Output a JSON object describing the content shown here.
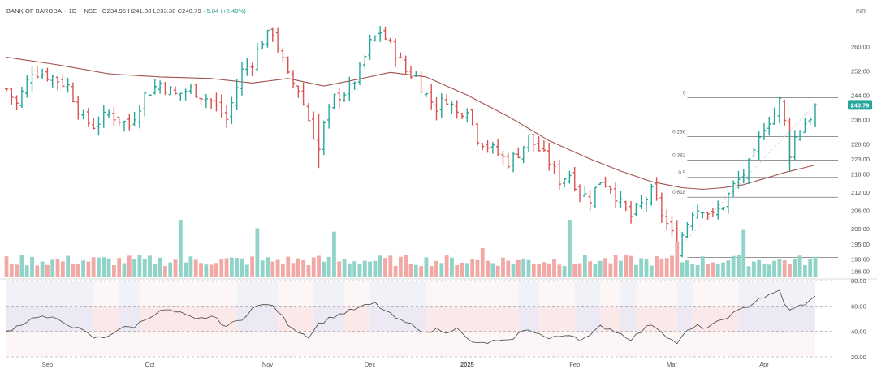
{
  "header": {
    "symbol": "BANK OF BARODA",
    "interval": "1D",
    "exchange": "NSE",
    "open": "O234.95",
    "high": "H241.30",
    "low": "L233.38",
    "close": "C240.79",
    "change": "+5.84 (+2.49%)",
    "currency": "INR"
  },
  "colors": {
    "up": "#26a69a",
    "down": "#d9534f",
    "up_vol": "#8fd3c9",
    "down_vol": "#f2a9a6",
    "ma": "#a0524f",
    "rsi_line": "#444444",
    "rsi_band": "#ece9f4",
    "rsi_pink": "#fbe9e9"
  },
  "chart_data": [
    {
      "type": "ohlc",
      "title": "BANK OF BARODA · 1D · NSE",
      "yticks": [
        260.0,
        252.0,
        244.0,
        236.0,
        228.0,
        223.0,
        218.0,
        212.0,
        206.0,
        200.0,
        195.0,
        190.0,
        186.0
      ],
      "ylim": [
        184,
        270
      ],
      "xticks": [
        {
          "label": "Sep",
          "index": 8
        },
        {
          "label": "Oct",
          "index": 28
        },
        {
          "label": "Nov",
          "index": 51
        },
        {
          "label": "Dec",
          "index": 71
        },
        {
          "label": "2025",
          "index": 90
        },
        {
          "label": "Feb",
          "index": 111
        },
        {
          "label": "Mar",
          "index": 130
        },
        {
          "label": "Apr",
          "index": 148
        }
      ],
      "last_price": "240.79",
      "fibonacci_levels": [
        {
          "label": "0",
          "price": 243.2
        },
        {
          "label": "0.236",
          "price": 230.4
        },
        {
          "label": "0.382",
          "price": 222.6
        },
        {
          "label": "0.5",
          "price": 216.9
        },
        {
          "label": "0.618",
          "price": 210.4
        }
      ],
      "keypoints": [
        [
          0,
          246
        ],
        [
          2,
          241
        ],
        [
          5,
          252
        ],
        [
          9,
          250
        ],
        [
          12,
          247
        ],
        [
          15,
          236
        ],
        [
          17,
          234
        ],
        [
          20,
          238
        ],
        [
          24,
          234
        ],
        [
          27,
          244
        ],
        [
          30,
          248
        ],
        [
          33,
          244
        ],
        [
          36,
          246
        ],
        [
          40,
          242
        ],
        [
          43,
          236
        ],
        [
          46,
          252
        ],
        [
          48,
          255
        ],
        [
          50,
          262
        ],
        [
          52,
          265
        ],
        [
          55,
          250
        ],
        [
          57,
          246
        ],
        [
          59,
          236
        ],
        [
          61,
          226
        ],
        [
          62,
          234
        ],
        [
          64,
          243
        ],
        [
          67,
          246
        ],
        [
          69,
          252
        ],
        [
          71,
          261
        ],
        [
          73,
          265
        ],
        [
          76,
          258
        ],
        [
          78,
          252
        ],
        [
          80,
          250
        ],
        [
          82,
          244
        ],
        [
          84,
          240
        ],
        [
          86,
          243
        ],
        [
          88,
          238
        ],
        [
          90,
          240
        ],
        [
          92,
          230
        ],
        [
          95,
          226
        ],
        [
          98,
          222
        ],
        [
          100,
          225
        ],
        [
          102,
          230
        ],
        [
          104,
          226
        ],
        [
          106,
          222
        ],
        [
          108,
          216
        ],
        [
          110,
          218
        ],
        [
          112,
          212
        ],
        [
          114,
          210
        ],
        [
          116,
          216
        ],
        [
          118,
          214
        ],
        [
          120,
          208
        ],
        [
          122,
          204
        ],
        [
          124,
          208
        ],
        [
          126,
          212
        ],
        [
          128,
          205
        ],
        [
          130,
          198
        ],
        [
          131,
          193
        ],
        [
          132,
          198
        ],
        [
          134,
          206
        ],
        [
          136,
          207
        ],
        [
          138,
          204
        ],
        [
          140,
          208
        ],
        [
          142,
          214
        ],
        [
          144,
          218
        ],
        [
          146,
          224
        ],
        [
          148,
          234
        ],
        [
          150,
          238
        ],
        [
          151,
          242
        ],
        [
          152,
          235
        ],
        [
          153,
          225
        ],
        [
          154,
          230
        ],
        [
          155,
          233
        ],
        [
          157,
          237
        ],
        [
          158,
          240.79
        ]
      ],
      "ma_keypoints": [
        [
          0,
          256.5
        ],
        [
          10,
          254
        ],
        [
          20,
          251
        ],
        [
          30,
          250
        ],
        [
          40,
          249.5
        ],
        [
          48,
          248
        ],
        [
          55,
          249.5
        ],
        [
          62,
          247
        ],
        [
          68,
          249
        ],
        [
          75,
          251.5
        ],
        [
          82,
          250
        ],
        [
          90,
          244
        ],
        [
          98,
          237
        ],
        [
          106,
          229
        ],
        [
          114,
          223
        ],
        [
          120,
          219
        ],
        [
          126,
          215.5
        ],
        [
          132,
          213.5
        ],
        [
          136,
          213
        ],
        [
          140,
          213.5
        ],
        [
          144,
          214.5
        ],
        [
          148,
          216.5
        ],
        [
          152,
          218.5
        ],
        [
          158,
          221
        ]
      ]
    },
    {
      "type": "bar",
      "name": "volume",
      "note": "relative heights 0-1",
      "spikes": [
        {
          "index": 34,
          "value": 1.0
        },
        {
          "index": 49,
          "value": 0.85
        },
        {
          "index": 64,
          "value": 0.79
        },
        {
          "index": 110,
          "value": 1.0
        },
        {
          "index": 93,
          "value": 0.5
        },
        {
          "index": 144,
          "value": 0.82
        },
        {
          "index": 131,
          "value": 0.6
        }
      ]
    },
    {
      "type": "line",
      "name": "rsi",
      "yticks": [
        80.0,
        60.0,
        40.0,
        20.0
      ],
      "ylim": [
        20,
        80
      ],
      "keypoints": [
        [
          0,
          40
        ],
        [
          3,
          46
        ],
        [
          6,
          52
        ],
        [
          9,
          50
        ],
        [
          12,
          46
        ],
        [
          15,
          40
        ],
        [
          17,
          35
        ],
        [
          19,
          35
        ],
        [
          22,
          42
        ],
        [
          25,
          44
        ],
        [
          28,
          52
        ],
        [
          31,
          57
        ],
        [
          34,
          54
        ],
        [
          37,
          49
        ],
        [
          40,
          52
        ],
        [
          43,
          44
        ],
        [
          46,
          50
        ],
        [
          48,
          58
        ],
        [
          51,
          62
        ],
        [
          53,
          56
        ],
        [
          55,
          46
        ],
        [
          57,
          40
        ],
        [
          59,
          36
        ],
        [
          61,
          46
        ],
        [
          64,
          52
        ],
        [
          67,
          56
        ],
        [
          70,
          60
        ],
        [
          72,
          62
        ],
        [
          74,
          56
        ],
        [
          77,
          48
        ],
        [
          80,
          44
        ],
        [
          82,
          38
        ],
        [
          84,
          42
        ],
        [
          86,
          40
        ],
        [
          88,
          42
        ],
        [
          90,
          34
        ],
        [
          92,
          30
        ],
        [
          95,
          32
        ],
        [
          98,
          32
        ],
        [
          100,
          38
        ],
        [
          102,
          42
        ],
        [
          104,
          38
        ],
        [
          106,
          34
        ],
        [
          108,
          36
        ],
        [
          110,
          38
        ],
        [
          112,
          34
        ],
        [
          114,
          36
        ],
        [
          116,
          44
        ],
        [
          118,
          42
        ],
        [
          120,
          38
        ],
        [
          122,
          34
        ],
        [
          124,
          40
        ],
        [
          126,
          46
        ],
        [
          128,
          40
        ],
        [
          130,
          33
        ],
        [
          131,
          31
        ],
        [
          133,
          40
        ],
        [
          135,
          44
        ],
        [
          137,
          43
        ],
        [
          139,
          47
        ],
        [
          141,
          52
        ],
        [
          143,
          56
        ],
        [
          145,
          60
        ],
        [
          147,
          66
        ],
        [
          149,
          68
        ],
        [
          151,
          72
        ],
        [
          152,
          62
        ],
        [
          153,
          56
        ],
        [
          155,
          60
        ],
        [
          157,
          64
        ],
        [
          158,
          67
        ]
      ],
      "purple_band_ranges": [
        [
          0,
          17
        ],
        [
          22,
          26
        ],
        [
          45,
          53
        ],
        [
          60,
          66
        ],
        [
          71,
          82
        ],
        [
          100,
          104
        ],
        [
          111,
          116
        ],
        [
          120,
          123
        ],
        [
          131,
          134
        ],
        [
          143,
          158
        ]
      ],
      "pink_band_ranges": [
        [
          17,
          22
        ],
        [
          26,
          45
        ],
        [
          53,
          60
        ],
        [
          66,
          71
        ],
        [
          82,
          100
        ],
        [
          104,
          111
        ],
        [
          116,
          120
        ],
        [
          123,
          131
        ],
        [
          134,
          143
        ]
      ]
    }
  ]
}
